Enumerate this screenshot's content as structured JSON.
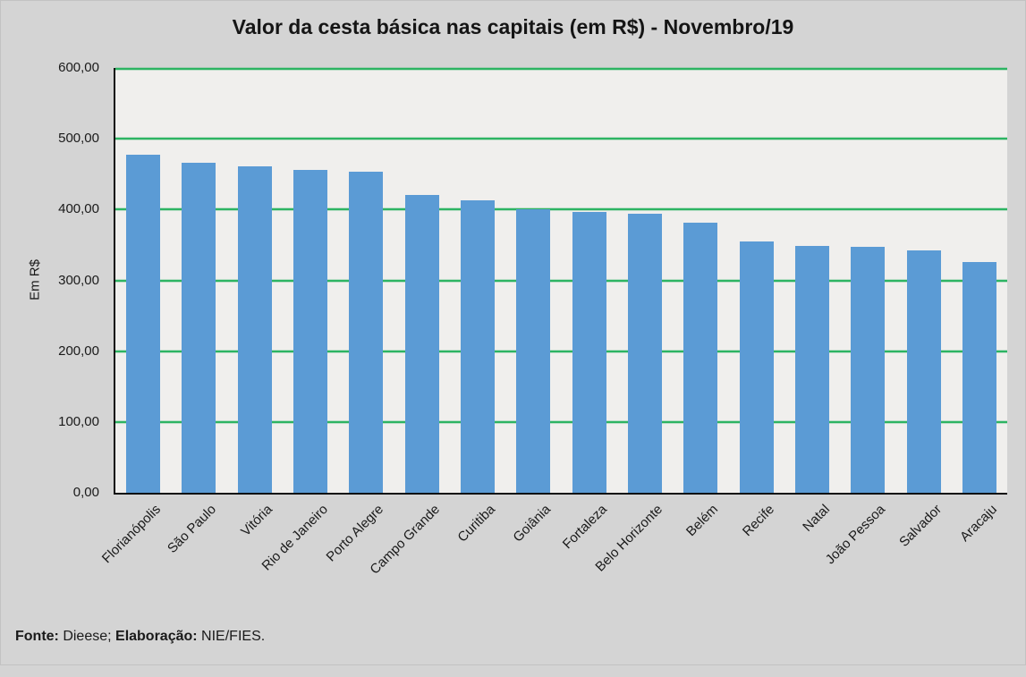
{
  "chart_data": {
    "type": "bar",
    "title": "Valor da cesta básica nas capitais (em R$) - Novembro/19",
    "categories": [
      "Florianópolis",
      "São Paulo",
      "Vitória",
      "Rio de Janeiro",
      "Porto Alegre",
      "Campo Grande",
      "Curitiba",
      "Goiânia",
      "Fortaleza",
      "Belo Horizonte",
      "Belém",
      "Recife",
      "Natal",
      "João Pessoa",
      "Salvador",
      "Aracaju"
    ],
    "values": [
      478,
      466,
      461,
      456,
      454,
      421,
      413,
      400,
      397,
      394,
      381,
      355,
      349,
      347,
      342,
      326
    ],
    "xlabel": "",
    "ylabel": "Em R$",
    "ylim": [
      0,
      600
    ],
    "yticks": [
      600,
      500,
      400,
      300,
      200,
      100,
      0
    ],
    "ytick_labels": [
      "600,00",
      "500,00",
      "400,00",
      "300,00",
      "200,00",
      "100,00",
      "0,00"
    ],
    "grid": "horizontal",
    "legend_position": "none",
    "x_tick_rotation_deg": 45
  },
  "colors": {
    "page_background": "#d4d4d4",
    "plot_background": "#f0efed",
    "bar_fill": "#5b9bd5",
    "gridline": "#2db463",
    "axis_line": "#0d0d0d",
    "text": "#1a1a1a"
  },
  "footer": {
    "source_label": "Fonte:",
    "source_value": " Dieese; ",
    "elaboration_label": "Elaboração:",
    "elaboration_value": " NIE/FIES."
  }
}
